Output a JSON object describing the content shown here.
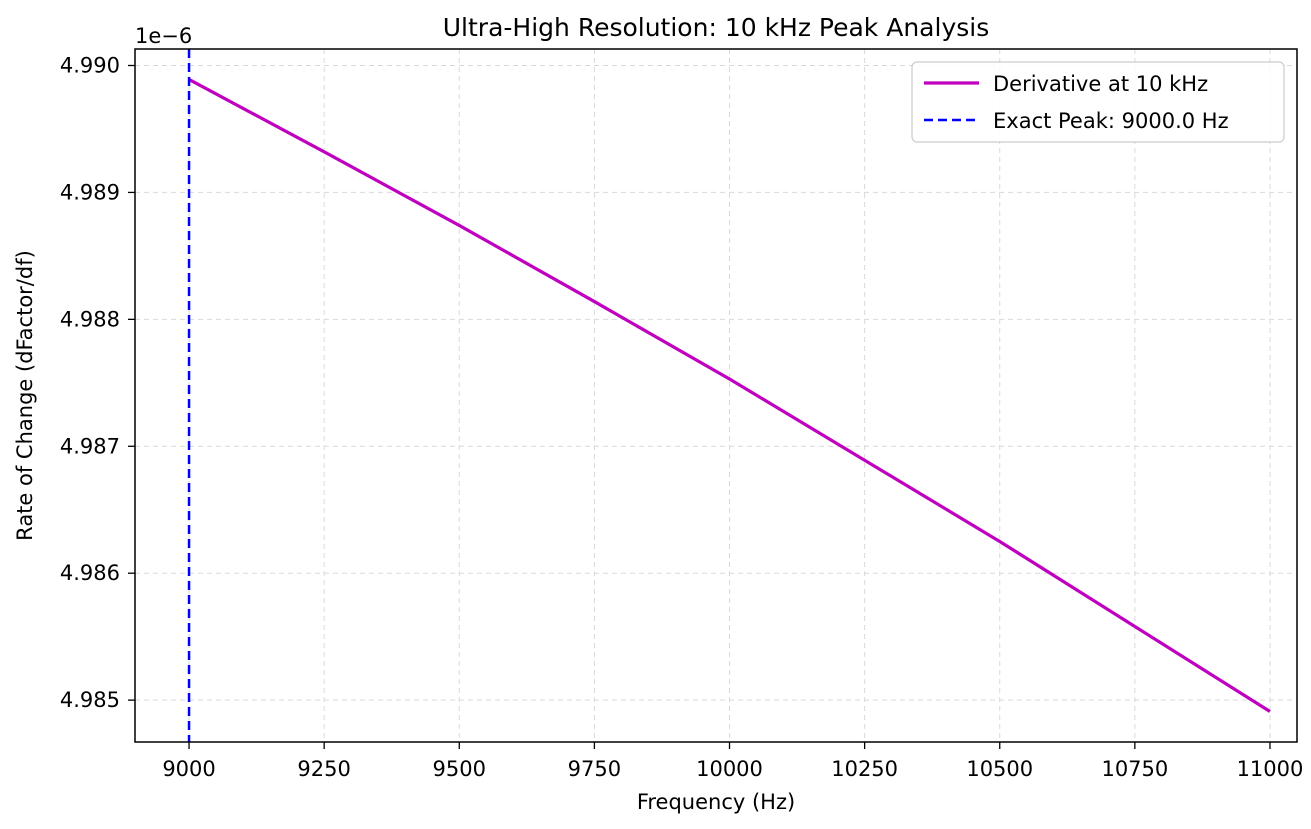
{
  "chart_data": {
    "type": "line",
    "title": "Ultra-High Resolution: 10 kHz Peak Analysis",
    "xlabel": "Frequency (Hz)",
    "ylabel": "Rate of Change (dFactor/df)",
    "y_offset_text": "1e−6",
    "y_scale_factor": 1e-06,
    "xlim": [
      8900,
      11050
    ],
    "ylim": [
      4.98467,
      4.99013
    ],
    "x_ticks": [
      9000,
      9250,
      9500,
      9750,
      10000,
      10250,
      10500,
      10750,
      11000
    ],
    "x_tick_labels": [
      "9000",
      "9250",
      "9500",
      "9750",
      "10000",
      "10250",
      "10500",
      "10750",
      "11000"
    ],
    "y_ticks": [
      4.985,
      4.986,
      4.987,
      4.988,
      4.989,
      4.99
    ],
    "y_tick_labels": [
      "4.985",
      "4.986",
      "4.987",
      "4.988",
      "4.989",
      "4.990"
    ],
    "grid": true,
    "legend_position": "top-right",
    "series": [
      {
        "name": "Derivative at 10 kHz",
        "kind": "line",
        "style": "solid",
        "color": "#BF00BF",
        "x": [
          9000,
          9250,
          9500,
          9750,
          10000,
          10250,
          10500,
          10750,
          11000
        ],
        "y": [
          4.98989,
          4.98932,
          4.98874,
          4.98814,
          4.98753,
          4.98689,
          4.98625,
          4.98558,
          4.98491
        ]
      },
      {
        "name": "Exact Peak: 9000.0 Hz",
        "kind": "vline",
        "style": "dashed",
        "color": "#0000FF",
        "x": 9000
      }
    ]
  }
}
